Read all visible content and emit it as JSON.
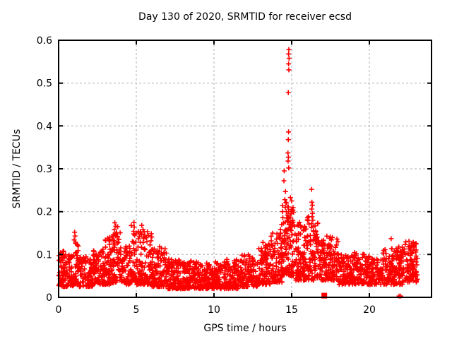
{
  "window": {
    "background": "#ffffff",
    "text_color": "#000000"
  },
  "chart_data": {
    "type": "scatter",
    "title": "Day 130 of 2020, SRMTID for receiver ecsd",
    "xlabel": "GPS time / hours",
    "ylabel": "SRMTID / TECUs",
    "xlim": [
      0,
      24
    ],
    "ylim": [
      0,
      0.6
    ],
    "xtick_values": [
      0,
      5,
      10,
      15,
      20
    ],
    "xtick_labels": [
      "0",
      "5",
      "10",
      "15",
      "20"
    ],
    "ytick_values": [
      0,
      0.1,
      0.2,
      0.3,
      0.4,
      0.5,
      0.6
    ],
    "ytick_labels": [
      "0",
      "0.1",
      "0.2",
      "0.3",
      "0.4",
      "0.5",
      "0.6"
    ],
    "grid": true,
    "grid_color": "#b0b0b0",
    "border_color": "#000000",
    "marker": {
      "shape": "plus",
      "color": "#ff0000",
      "size": 7
    },
    "legend": "none",
    "description": "Dense band of red plus markers ~0.02-0.12 TECUs all day; bumps near hours 3.5-4 and 5-6 (to ~0.17), large spike near hour 14.8 reaching 0.58, secondary spike near hour 16.3 (to ~0.25), slight rise at end of day.",
    "seed": 20200510,
    "band_segments": [
      {
        "x0": 0.0,
        "x1": 0.5,
        "n": 60,
        "ymin": 0.025,
        "ymax": 0.115,
        "k": 1.6
      },
      {
        "x0": 0.5,
        "x1": 1.0,
        "n": 55,
        "ymin": 0.025,
        "ymax": 0.1,
        "k": 1.6
      },
      {
        "x0": 1.0,
        "x1": 1.3,
        "n": 35,
        "ymin": 0.03,
        "ymax": 0.14,
        "k": 1.8
      },
      {
        "x0": 1.3,
        "x1": 2.2,
        "n": 95,
        "ymin": 0.025,
        "ymax": 0.095,
        "k": 1.5
      },
      {
        "x0": 2.2,
        "x1": 3.0,
        "n": 85,
        "ymin": 0.03,
        "ymax": 0.115,
        "k": 1.6
      },
      {
        "x0": 3.0,
        "x1": 3.5,
        "n": 55,
        "ymin": 0.03,
        "ymax": 0.14,
        "k": 1.6
      },
      {
        "x0": 3.5,
        "x1": 4.0,
        "n": 60,
        "ymin": 0.035,
        "ymax": 0.165,
        "k": 1.7
      },
      {
        "x0": 4.0,
        "x1": 4.6,
        "n": 60,
        "ymin": 0.03,
        "ymax": 0.12,
        "k": 1.5
      },
      {
        "x0": 4.6,
        "x1": 5.0,
        "n": 45,
        "ymin": 0.035,
        "ymax": 0.17,
        "k": 1.9
      },
      {
        "x0": 5.0,
        "x1": 6.0,
        "n": 110,
        "ymin": 0.03,
        "ymax": 0.155,
        "k": 1.9
      },
      {
        "x0": 6.0,
        "x1": 7.0,
        "n": 110,
        "ymin": 0.025,
        "ymax": 0.115,
        "k": 1.7
      },
      {
        "x0": 7.0,
        "x1": 8.0,
        "n": 110,
        "ymin": 0.02,
        "ymax": 0.09,
        "k": 1.5
      },
      {
        "x0": 8.0,
        "x1": 9.0,
        "n": 110,
        "ymin": 0.02,
        "ymax": 0.085,
        "k": 1.5
      },
      {
        "x0": 9.0,
        "x1": 10.0,
        "n": 105,
        "ymin": 0.02,
        "ymax": 0.08,
        "k": 1.4
      },
      {
        "x0": 10.0,
        "x1": 10.8,
        "n": 85,
        "ymin": 0.02,
        "ymax": 0.085,
        "k": 1.4
      },
      {
        "x0": 10.8,
        "x1": 11.8,
        "n": 105,
        "ymin": 0.02,
        "ymax": 0.09,
        "k": 1.5
      },
      {
        "x0": 11.8,
        "x1": 12.8,
        "n": 105,
        "ymin": 0.025,
        "ymax": 0.1,
        "k": 1.5
      },
      {
        "x0": 12.8,
        "x1": 13.6,
        "n": 90,
        "ymin": 0.03,
        "ymax": 0.125,
        "k": 1.7
      },
      {
        "x0": 13.6,
        "x1": 14.4,
        "n": 95,
        "ymin": 0.035,
        "ymax": 0.15,
        "k": 1.8
      },
      {
        "x0": 14.4,
        "x1": 15.2,
        "n": 110,
        "ymin": 0.05,
        "ymax": 0.24,
        "k": 1.9
      },
      {
        "x0": 15.2,
        "x1": 16.0,
        "n": 100,
        "ymin": 0.04,
        "ymax": 0.17,
        "k": 1.8
      },
      {
        "x0": 16.0,
        "x1": 16.7,
        "n": 85,
        "ymin": 0.04,
        "ymax": 0.19,
        "k": 1.8
      },
      {
        "x0": 16.7,
        "x1": 17.3,
        "n": 65,
        "ymin": 0.04,
        "ymax": 0.145,
        "k": 1.6
      },
      {
        "x0": 17.3,
        "x1": 18.0,
        "n": 80,
        "ymin": 0.04,
        "ymax": 0.14,
        "k": 1.7
      },
      {
        "x0": 18.0,
        "x1": 19.0,
        "n": 105,
        "ymin": 0.03,
        "ymax": 0.1,
        "k": 1.5
      },
      {
        "x0": 19.0,
        "x1": 20.0,
        "n": 105,
        "ymin": 0.03,
        "ymax": 0.105,
        "k": 1.5
      },
      {
        "x0": 20.0,
        "x1": 20.8,
        "n": 85,
        "ymin": 0.03,
        "ymax": 0.09,
        "k": 1.5
      },
      {
        "x0": 20.8,
        "x1": 21.8,
        "n": 105,
        "ymin": 0.03,
        "ymax": 0.12,
        "k": 1.6
      },
      {
        "x0": 21.8,
        "x1": 22.3,
        "n": 55,
        "ymin": 0.03,
        "ymax": 0.12,
        "k": 1.5
      },
      {
        "x0": 22.3,
        "x1": 23.1,
        "n": 95,
        "ymin": 0.035,
        "ymax": 0.13,
        "k": 1.5
      }
    ],
    "outliers": [
      [
        1.0,
        0.134
      ],
      [
        1.03,
        0.152
      ],
      [
        1.06,
        0.143
      ],
      [
        3.45,
        0.136
      ],
      [
        3.52,
        0.146
      ],
      [
        3.58,
        0.158
      ],
      [
        3.62,
        0.174
      ],
      [
        3.68,
        0.166
      ],
      [
        3.73,
        0.151
      ],
      [
        3.8,
        0.142
      ],
      [
        3.88,
        0.135
      ],
      [
        4.83,
        0.154
      ],
      [
        4.85,
        0.175
      ],
      [
        4.87,
        0.164
      ],
      [
        4.9,
        0.145
      ],
      [
        5.28,
        0.15
      ],
      [
        5.35,
        0.168
      ],
      [
        5.43,
        0.158
      ],
      [
        5.55,
        0.145
      ],
      [
        5.63,
        0.139
      ],
      [
        6.5,
        0.118
      ],
      [
        13.15,
        0.128
      ],
      [
        13.35,
        0.121
      ],
      [
        14.05,
        0.148
      ],
      [
        14.18,
        0.143
      ],
      [
        14.28,
        0.158
      ],
      [
        14.36,
        0.17
      ],
      [
        14.43,
        0.186
      ],
      [
        14.5,
        0.272
      ],
      [
        14.52,
        0.295
      ],
      [
        14.56,
        0.228
      ],
      [
        14.59,
        0.21
      ],
      [
        14.6,
        0.247
      ],
      [
        14.6,
        0.152
      ],
      [
        14.63,
        0.221
      ],
      [
        14.66,
        0.2
      ],
      [
        14.68,
        0.185
      ],
      [
        14.7,
        0.149
      ],
      [
        14.72,
        0.192
      ],
      [
        14.75,
        0.178
      ],
      [
        14.76,
        0.337
      ],
      [
        14.77,
        0.318
      ],
      [
        14.78,
        0.478
      ],
      [
        14.78,
        0.368
      ],
      [
        14.79,
        0.327
      ],
      [
        14.8,
        0.568
      ],
      [
        14.8,
        0.545
      ],
      [
        14.8,
        0.386
      ],
      [
        14.81,
        0.302
      ],
      [
        14.82,
        0.578
      ],
      [
        14.82,
        0.531
      ],
      [
        14.83,
        0.558
      ],
      [
        14.83,
        0.17
      ],
      [
        14.88,
        0.163
      ],
      [
        14.93,
        0.157
      ],
      [
        15.0,
        0.225
      ],
      [
        15.02,
        0.165
      ],
      [
        15.5,
        0.175
      ],
      [
        15.62,
        0.164
      ],
      [
        15.75,
        0.156
      ],
      [
        16.27,
        0.172
      ],
      [
        16.28,
        0.252
      ],
      [
        16.29,
        0.206
      ],
      [
        16.3,
        0.222
      ],
      [
        16.31,
        0.188
      ],
      [
        16.33,
        0.215
      ],
      [
        16.34,
        0.196
      ],
      [
        16.36,
        0.18
      ],
      [
        16.38,
        0.166
      ],
      [
        16.55,
        0.155
      ],
      [
        16.62,
        0.147
      ],
      [
        17.48,
        0.141
      ],
      [
        17.56,
        0.134
      ],
      [
        21.4,
        0.137
      ],
      [
        22.55,
        0.131
      ],
      [
        22.72,
        0.125
      ],
      [
        22.88,
        0.119
      ]
    ],
    "special_points": [
      {
        "shape": "filled-square",
        "x": 17.1,
        "y": 0.004
      },
      {
        "shape": "plus",
        "x": 21.91,
        "y": 0.003
      },
      {
        "shape": "plus",
        "x": 22.02,
        "y": 0.003
      }
    ]
  }
}
